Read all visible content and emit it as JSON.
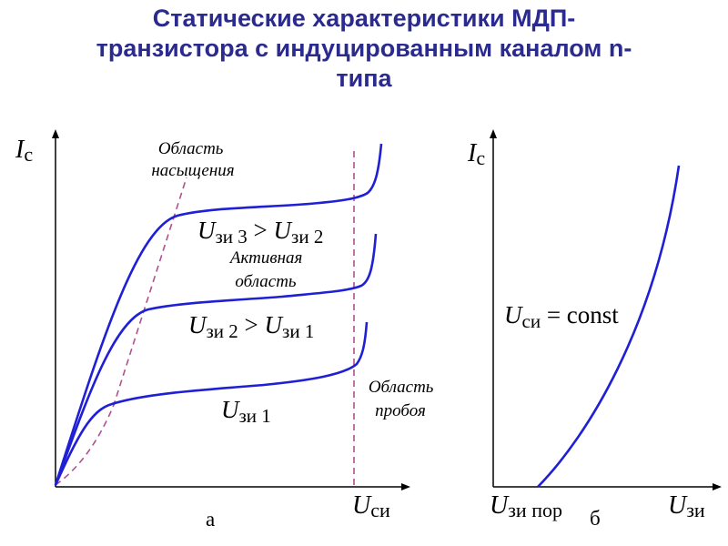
{
  "title": {
    "line1": "Статические характеристики МДП-",
    "line2": "транзистора с индуцированным каналом n-",
    "line3": "типа"
  },
  "colors": {
    "title": "#2b2b8f",
    "curve": "#1f1fd6",
    "boundary": "#b0508f",
    "axis": "#000000",
    "text": "#000000"
  },
  "graph_a": {
    "y_axis_label": {
      "main": "I",
      "sub": "с"
    },
    "x_axis_label": {
      "main": "U",
      "sub": "си"
    },
    "caption": "а",
    "saturation_region_label": [
      "Область",
      "насыщения"
    ],
    "breakdown_region_label": [
      "Область",
      "пробоя"
    ],
    "active_region_label": [
      "Активная",
      "область"
    ],
    "curve_labels": {
      "u3": {
        "u1": "U",
        "s1": "зи 3",
        "op": " > ",
        "u2": "U",
        "s2": "зи 2"
      },
      "u2": {
        "u1": "U",
        "s1": "зи 2",
        "op": " > ",
        "u2": "U",
        "s2": "зи 1"
      },
      "u1": {
        "u1": "U",
        "s1": "зи 1"
      }
    }
  },
  "graph_b": {
    "y_axis_label": {
      "main": "I",
      "sub": "с"
    },
    "x_axis_label": {
      "main": "U",
      "sub": "зи"
    },
    "threshold_label": {
      "main": "U",
      "sub": "зи пор"
    },
    "caption": "б",
    "curve_label": {
      "main": "U",
      "sub": "си",
      "rest": " = const"
    }
  }
}
